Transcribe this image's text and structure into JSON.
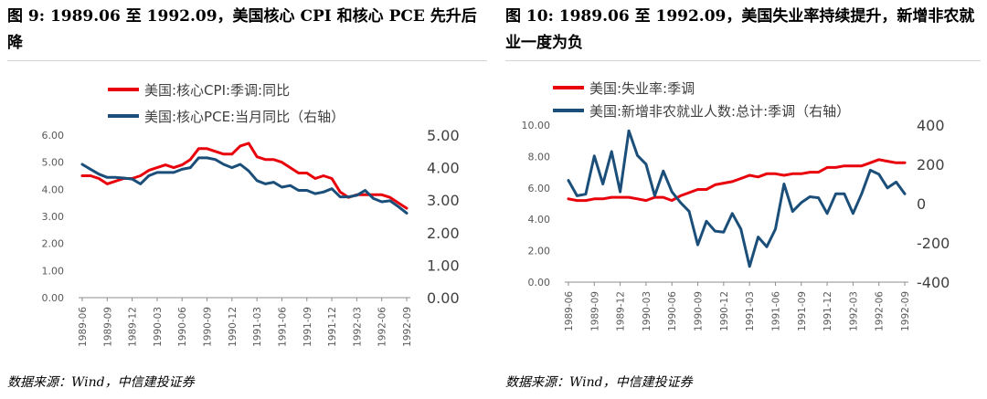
{
  "left_panel": {
    "title": "图 9: 1989.06 至 1992.09，美国核心 CPI 和核心 PCE 先升后降",
    "source": "数据来源：Wind，中信建投证券"
  },
  "right_panel": {
    "title": "图 10: 1989.06 至 1992.09，美国失业率持续提升，新增非农就业一度为负",
    "source": "数据来源：Wind，中信建投证券"
  },
  "colors": {
    "red": "#e8000b",
    "blue": "#1b4f7a",
    "axis": "#8c8c8c",
    "tick_text": "#595959"
  },
  "chart_data": [
    {
      "id": "left",
      "type": "line",
      "categories": [
        "1989-06",
        "1989-07",
        "1989-08",
        "1989-09",
        "1989-10",
        "1989-11",
        "1989-12",
        "1990-01",
        "1990-02",
        "1990-03",
        "1990-04",
        "1990-05",
        "1990-06",
        "1990-07",
        "1990-08",
        "1990-09",
        "1990-10",
        "1990-11",
        "1990-12",
        "1991-01",
        "1991-02",
        "1991-03",
        "1991-04",
        "1991-05",
        "1991-06",
        "1991-07",
        "1991-08",
        "1991-09",
        "1991-10",
        "1991-11",
        "1991-12",
        "1992-01",
        "1992-02",
        "1992-03",
        "1992-04",
        "1992-05",
        "1992-06",
        "1992-07",
        "1992-08",
        "1992-09"
      ],
      "x_tick_labels": [
        "1989-06",
        "1989-09",
        "1989-12",
        "1990-03",
        "1990-06",
        "1990-09",
        "1990-12",
        "1991-03",
        "1991-06",
        "1991-09",
        "1991-12",
        "1992-03",
        "1992-06",
        "1992-09"
      ],
      "series": [
        {
          "name": "美国:核心CPI:季调:同比",
          "axis": "left",
          "values": [
            4.5,
            4.5,
            4.4,
            4.2,
            4.3,
            4.4,
            4.4,
            4.5,
            4.7,
            4.8,
            4.9,
            4.8,
            4.9,
            5.1,
            5.5,
            5.5,
            5.4,
            5.3,
            5.3,
            5.6,
            5.7,
            5.2,
            5.1,
            5.1,
            5.0,
            4.8,
            4.6,
            4.6,
            4.4,
            4.5,
            4.4,
            3.9,
            3.7,
            3.8,
            3.8,
            3.8,
            3.8,
            3.7,
            3.5,
            3.3
          ]
        },
        {
          "name": "美国:核心PCE:当月同比（右轴）",
          "axis": "right",
          "values": [
            4.1,
            3.95,
            3.8,
            3.7,
            3.7,
            3.68,
            3.65,
            3.5,
            3.75,
            3.85,
            3.85,
            3.85,
            3.95,
            4.0,
            4.3,
            4.3,
            4.25,
            4.1,
            4.0,
            4.1,
            3.9,
            3.6,
            3.5,
            3.55,
            3.4,
            3.45,
            3.3,
            3.3,
            3.2,
            3.25,
            3.35,
            3.1,
            3.1,
            3.15,
            3.3,
            3.05,
            2.95,
            2.98,
            2.8,
            2.6
          ]
        }
      ],
      "y_left": {
        "min": 0,
        "max": 6,
        "ticks": [
          "0.00",
          "1.00",
          "2.00",
          "3.00",
          "4.00",
          "5.00",
          "6.00"
        ]
      },
      "y_right": {
        "min": 0,
        "max": 5,
        "ticks": [
          "0.00",
          "1.00",
          "2.00",
          "3.00",
          "4.00",
          "5.00"
        ]
      },
      "legend": [
        "美国:核心CPI:季调:同比",
        "美国:核心PCE:当月同比（右轴）"
      ],
      "legend_position": "top"
    },
    {
      "id": "right",
      "type": "line",
      "categories": [
        "1989-06",
        "1989-07",
        "1989-08",
        "1989-09",
        "1989-10",
        "1989-11",
        "1989-12",
        "1990-01",
        "1990-02",
        "1990-03",
        "1990-04",
        "1990-05",
        "1990-06",
        "1990-07",
        "1990-08",
        "1990-09",
        "1990-10",
        "1990-11",
        "1990-12",
        "1991-01",
        "1991-02",
        "1991-03",
        "1991-04",
        "1991-05",
        "1991-06",
        "1991-07",
        "1991-08",
        "1991-09",
        "1991-10",
        "1991-11",
        "1991-12",
        "1992-01",
        "1992-02",
        "1992-03",
        "1992-04",
        "1992-05",
        "1992-06",
        "1992-07",
        "1992-08",
        "1992-09"
      ],
      "x_tick_labels": [
        "1989-06",
        "1989-09",
        "1989-12",
        "1990-03",
        "1990-06",
        "1990-09",
        "1990-12",
        "1991-03",
        "1991-06",
        "1991-09",
        "1991-12",
        "1992-03",
        "1992-06",
        "1992-09"
      ],
      "series": [
        {
          "name": "美国:失业率:季调",
          "axis": "left",
          "values": [
            5.3,
            5.2,
            5.2,
            5.3,
            5.3,
            5.4,
            5.4,
            5.4,
            5.3,
            5.2,
            5.4,
            5.4,
            5.2,
            5.5,
            5.7,
            5.9,
            5.9,
            6.2,
            6.3,
            6.4,
            6.6,
            6.8,
            6.7,
            6.9,
            6.9,
            6.8,
            6.9,
            6.9,
            7.0,
            7.0,
            7.3,
            7.3,
            7.4,
            7.4,
            7.4,
            7.6,
            7.8,
            7.7,
            7.6,
            7.6
          ]
        },
        {
          "name": "美国:新增非农就业人数:总计:季调（右轴）",
          "axis": "right",
          "values": [
            118,
            40,
            48,
            243,
            100,
            265,
            60,
            371,
            245,
            201,
            40,
            166,
            60,
            5,
            -40,
            -210,
            -90,
            -140,
            -145,
            -50,
            -130,
            -320,
            -170,
            -220,
            -130,
            100,
            -40,
            5,
            35,
            30,
            -50,
            50,
            50,
            -50,
            50,
            170,
            150,
            80,
            110,
            50
          ]
        }
      ],
      "y_left": {
        "min": 0,
        "max": 10,
        "ticks": [
          "0.00",
          "2.00",
          "4.00",
          "6.00",
          "8.00",
          "10.00"
        ]
      },
      "y_right": {
        "min": -400,
        "max": 400,
        "ticks": [
          "-400",
          "-200",
          "0",
          "200",
          "400"
        ]
      },
      "legend": [
        "美国:失业率:季调",
        "美国:新增非农就业人数:总计:季调（右轴）"
      ],
      "legend_position": "top"
    }
  ]
}
